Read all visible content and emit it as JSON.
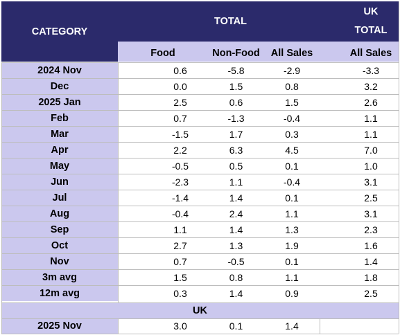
{
  "header": {
    "category": "CATEGORY",
    "total": "TOTAL",
    "uk_line1": "UK",
    "uk_line2": "TOTAL"
  },
  "subheader": [
    "Food",
    "Non-Food",
    "All Sales",
    "All Sales"
  ],
  "rows": [
    {
      "label": "2024 Nov",
      "values": [
        "0.6",
        "-5.8",
        "-2.9",
        "-3.3"
      ]
    },
    {
      "label": "Dec",
      "values": [
        "0.0",
        "1.5",
        "0.8",
        "3.2"
      ]
    },
    {
      "label": "2025 Jan",
      "values": [
        "2.5",
        "0.6",
        "1.5",
        "2.6"
      ]
    },
    {
      "label": "Feb",
      "values": [
        "0.7",
        "-1.3",
        "-0.4",
        "1.1"
      ]
    },
    {
      "label": "Mar",
      "values": [
        "-1.5",
        "1.7",
        "0.3",
        "1.1"
      ]
    },
    {
      "label": "Apr",
      "values": [
        "2.2",
        "6.3",
        "4.5",
        "7.0"
      ]
    },
    {
      "label": "May",
      "values": [
        "-0.5",
        "0.5",
        "0.1",
        "1.0"
      ]
    },
    {
      "label": "Jun",
      "values": [
        "-2.3",
        "1.1",
        "-0.4",
        "3.1"
      ]
    },
    {
      "label": "Jul",
      "values": [
        "-1.4",
        "1.4",
        "0.1",
        "2.5"
      ]
    },
    {
      "label": "Aug",
      "values": [
        "-0.4",
        "2.4",
        "1.1",
        "3.1"
      ]
    },
    {
      "label": "Sep",
      "values": [
        "1.1",
        "1.4",
        "1.3",
        "2.3"
      ]
    },
    {
      "label": "Oct",
      "values": [
        "2.7",
        "1.3",
        "1.9",
        "1.6"
      ]
    },
    {
      "label": "Nov",
      "values": [
        "0.7",
        "-0.5",
        "0.1",
        "1.4"
      ]
    },
    {
      "label": "3m avg",
      "values": [
        "1.5",
        "0.8",
        "1.1",
        "1.8"
      ]
    },
    {
      "label": "12m avg",
      "values": [
        "0.3",
        "1.4",
        "0.9",
        "2.5"
      ]
    }
  ],
  "uk_band": "UK",
  "uk_row": {
    "label": "2025 Nov",
    "values": [
      "3.0",
      "0.1",
      "1.4"
    ]
  },
  "colors": {
    "header_bg": "#2b2a6b",
    "subheader_bg": "#cbc8ee",
    "text_header": "#ffffff"
  }
}
